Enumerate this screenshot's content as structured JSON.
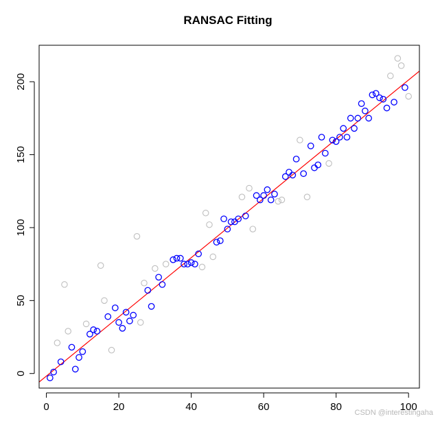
{
  "chart_data": {
    "type": "scatter",
    "title": "RANSAC Fitting",
    "xlabel": "",
    "ylabel": "",
    "xlim": [
      -2,
      103
    ],
    "ylim": [
      -10,
      225
    ],
    "x_ticks": [
      0,
      20,
      40,
      60,
      80,
      100
    ],
    "y_ticks": [
      0,
      50,
      100,
      150,
      200
    ],
    "grid": false,
    "legend": "none",
    "colors": {
      "inliers": "#0000ff",
      "outliers": "#bebebe",
      "fit_line": "#ff0000",
      "axis": "#000000"
    },
    "series": [
      {
        "role": "outliers",
        "points": [
          [
            3,
            21
          ],
          [
            5,
            61
          ],
          [
            6,
            29
          ],
          [
            11,
            34
          ],
          [
            15,
            74
          ],
          [
            16,
            50
          ],
          [
            18,
            16
          ],
          [
            25,
            94
          ],
          [
            26,
            35
          ],
          [
            27,
            62
          ],
          [
            30,
            72
          ],
          [
            33,
            75
          ],
          [
            43,
            73
          ],
          [
            44,
            110
          ],
          [
            45,
            102
          ],
          [
            46,
            80
          ],
          [
            54,
            121
          ],
          [
            56,
            127
          ],
          [
            57,
            99
          ],
          [
            64,
            118
          ],
          [
            65,
            119
          ],
          [
            70,
            160
          ],
          [
            72,
            121
          ],
          [
            78,
            144
          ],
          [
            95,
            204
          ],
          [
            97,
            216
          ],
          [
            98,
            211
          ],
          [
            100,
            190
          ]
        ]
      },
      {
        "role": "inliers",
        "points": [
          [
            1,
            -3
          ],
          [
            2,
            1
          ],
          [
            4,
            8
          ],
          [
            7,
            18
          ],
          [
            8,
            3
          ],
          [
            9,
            11
          ],
          [
            10,
            15
          ],
          [
            12,
            27
          ],
          [
            13,
            30
          ],
          [
            14,
            29
          ],
          [
            17,
            39
          ],
          [
            19,
            45
          ],
          [
            20,
            35
          ],
          [
            21,
            31
          ],
          [
            22,
            42
          ],
          [
            23,
            36
          ],
          [
            24,
            40
          ],
          [
            28,
            57
          ],
          [
            29,
            46
          ],
          [
            31,
            66
          ],
          [
            32,
            61
          ],
          [
            35,
            78
          ],
          [
            36,
            79
          ],
          [
            37,
            79
          ],
          [
            38,
            75
          ],
          [
            39,
            75
          ],
          [
            40,
            76
          ],
          [
            41,
            75
          ],
          [
            42,
            82
          ],
          [
            47,
            90
          ],
          [
            48,
            91
          ],
          [
            49,
            106
          ],
          [
            50,
            99
          ],
          [
            51,
            104
          ],
          [
            52,
            104
          ],
          [
            53,
            106
          ],
          [
            55,
            108
          ],
          [
            58,
            122
          ],
          [
            59,
            119
          ],
          [
            60,
            122
          ],
          [
            61,
            126
          ],
          [
            62,
            119
          ],
          [
            63,
            123
          ],
          [
            66,
            135
          ],
          [
            67,
            138
          ],
          [
            68,
            136
          ],
          [
            69,
            147
          ],
          [
            71,
            137
          ],
          [
            73,
            156
          ],
          [
            74,
            141
          ],
          [
            75,
            143
          ],
          [
            76,
            162
          ],
          [
            77,
            151
          ],
          [
            79,
            160
          ],
          [
            80,
            159
          ],
          [
            81,
            162
          ],
          [
            82,
            168
          ],
          [
            83,
            162
          ],
          [
            84,
            175
          ],
          [
            85,
            168
          ],
          [
            86,
            175
          ],
          [
            87,
            185
          ],
          [
            88,
            180
          ],
          [
            89,
            175
          ],
          [
            90,
            191
          ],
          [
            91,
            192
          ],
          [
            92,
            189
          ],
          [
            93,
            188
          ],
          [
            94,
            182
          ],
          [
            96,
            186
          ],
          [
            99,
            196
          ]
        ]
      }
    ],
    "fit_line": {
      "slope": 2.03,
      "intercept": -1.8
    }
  },
  "watermark": "CSDN @interestingaha"
}
